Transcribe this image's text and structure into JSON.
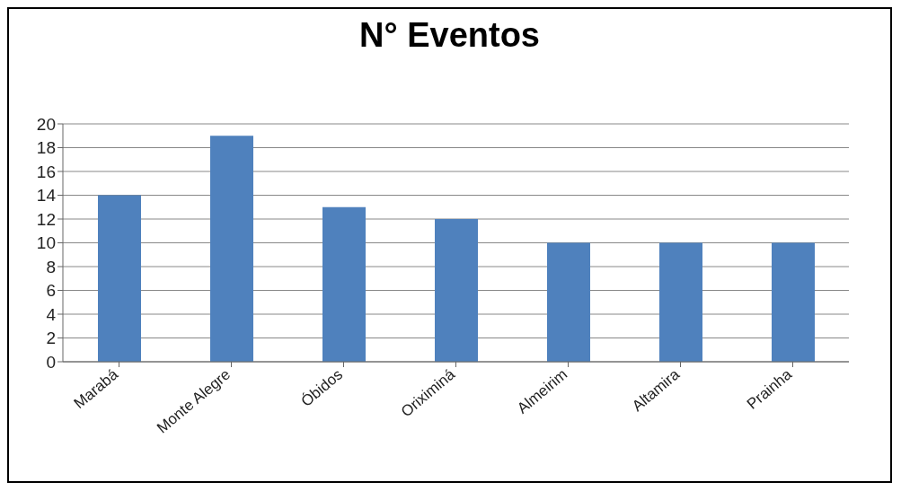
{
  "chart_data": {
    "type": "bar",
    "title": "N° Eventos",
    "categories": [
      "Marabá",
      "Monte Alegre",
      "Óbidos",
      "Oriximiná",
      "Almeirim",
      "Altamira",
      "Prainha"
    ],
    "values": [
      14,
      19,
      13,
      12,
      10,
      10,
      10
    ],
    "color": "#4f81bd",
    "ylim": [
      0,
      20
    ],
    "yticks": [
      0,
      2,
      4,
      6,
      8,
      10,
      12,
      14,
      16,
      18,
      20
    ],
    "grid": "y"
  }
}
